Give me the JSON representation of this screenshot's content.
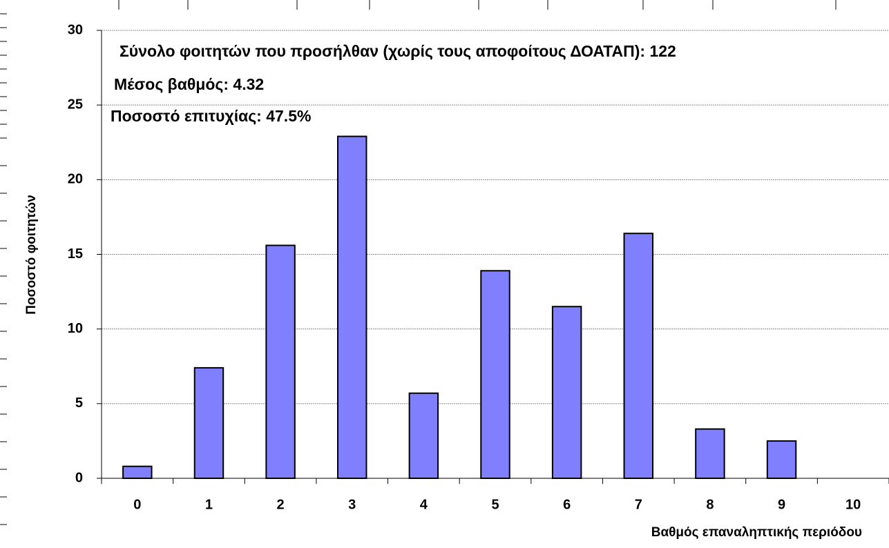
{
  "chart_data": {
    "type": "bar",
    "annotations": [
      "Σύνολο φοιτητών που προσήλθαν (χωρίς τους αποφοίτους ΔΟΑΤΑΠ): 122",
      "Μέσος βαθμός: 4.32",
      "Ποσοστό επιτυχίας: 47.5%"
    ],
    "x_label": "Βαθμός επαναληπτικής περιόδου",
    "y_label": "Ποσοστό φοιτητών",
    "categories": [
      "0",
      "1",
      "2",
      "3",
      "4",
      "5",
      "6",
      "7",
      "8",
      "9",
      "10"
    ],
    "values": [
      0.8,
      7.4,
      15.6,
      22.9,
      5.7,
      13.9,
      11.5,
      16.4,
      3.3,
      2.5,
      0
    ],
    "color": "#8080ff",
    "ylim": [
      0,
      30
    ],
    "yticks": [
      0,
      5,
      10,
      15,
      20,
      25,
      30
    ],
    "grid": true
  }
}
